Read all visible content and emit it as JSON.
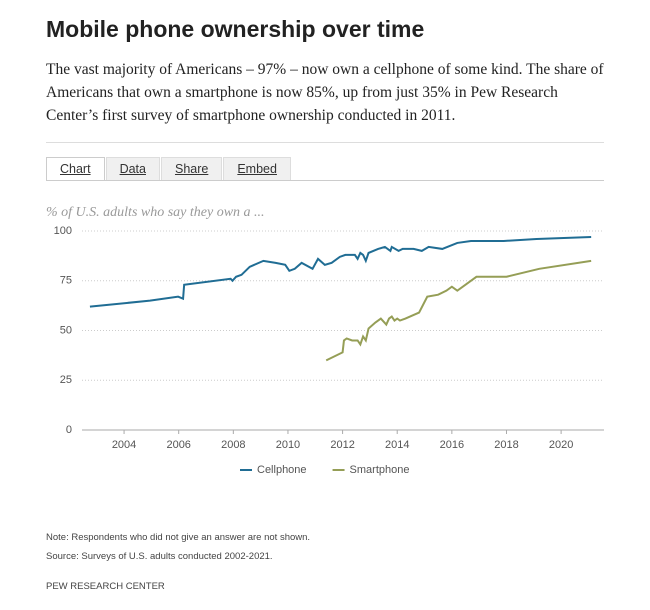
{
  "header": {
    "title": "Mobile phone ownership over time",
    "subtitle": "The vast majority of Americans – 97% – now own a cellphone of some kind. The share of Americans that own a smartphone is now 85%, up from just 35% in Pew Research Center’s first survey of smartphone ownership conducted in 2011."
  },
  "tabs": [
    "Chart",
    "Data",
    "Share",
    "Embed"
  ],
  "chart_data": {
    "type": "line",
    "ylabel": "% of U.S. adults who say they own a ...",
    "xlim": [
      2002.46,
      2021.57
    ],
    "xticks": [
      2004,
      2006,
      2008,
      2010,
      2012,
      2014,
      2016,
      2018,
      2020
    ],
    "ylim": [
      0,
      100
    ],
    "yticks": [
      0,
      25,
      50,
      75,
      100
    ],
    "grid": true,
    "legend": "bottom",
    "series": [
      {
        "name": "Cellphone",
        "color": "#206d94",
        "x": [
          2002.75,
          2004.95,
          2005.98,
          2006.16,
          2006.2,
          2007.9,
          2007.97,
          2008.1,
          2008.3,
          2008.6,
          2009.1,
          2009.55,
          2009.9,
          2010.05,
          2010.25,
          2010.5,
          2010.9,
          2011.1,
          2011.35,
          2011.6,
          2011.9,
          2012.1,
          2012.45,
          2012.55,
          2012.65,
          2012.75,
          2012.85,
          2012.95,
          2013.3,
          2013.55,
          2013.75,
          2013.8,
          2014.05,
          2014.2,
          2014.6,
          2014.9,
          2015.15,
          2015.65,
          2016.2,
          2016.7,
          2017.9,
          2019.1,
          2021.1
        ],
        "values": [
          62,
          65,
          67,
          66,
          73,
          76,
          75,
          77,
          78,
          82,
          85,
          84,
          83,
          80,
          81,
          84,
          81,
          86,
          83,
          84,
          87,
          88,
          88,
          86,
          89,
          88,
          85,
          89,
          91,
          92,
          90,
          92,
          90,
          91,
          91,
          90,
          92,
          91,
          94,
          95,
          95,
          96,
          97
        ]
      },
      {
        "name": "Smartphone",
        "color": "#959e56",
        "x": [
          2011.4,
          2012.0,
          2012.05,
          2012.15,
          2012.35,
          2012.55,
          2012.65,
          2012.75,
          2012.85,
          2012.95,
          2013.2,
          2013.4,
          2013.6,
          2013.7,
          2013.8,
          2013.9,
          2014.0,
          2014.1,
          2014.3,
          2014.8,
          2015.1,
          2015.5,
          2015.8,
          2016.0,
          2016.2,
          2016.9,
          2018.0,
          2019.2,
          2021.1
        ],
        "values": [
          35,
          39,
          45,
          46,
          45,
          45,
          43,
          47,
          45,
          51,
          54,
          56,
          53,
          56,
          57,
          55,
          56,
          55,
          56,
          59,
          67,
          68,
          70,
          72,
          70,
          77,
          77,
          81,
          85
        ]
      }
    ]
  },
  "footer": {
    "note": "Note: Respondents who did not give an answer are not shown.",
    "source": "Source: Surveys of U.S. adults conducted 2002-2021.",
    "brand": "PEW RESEARCH CENTER"
  }
}
